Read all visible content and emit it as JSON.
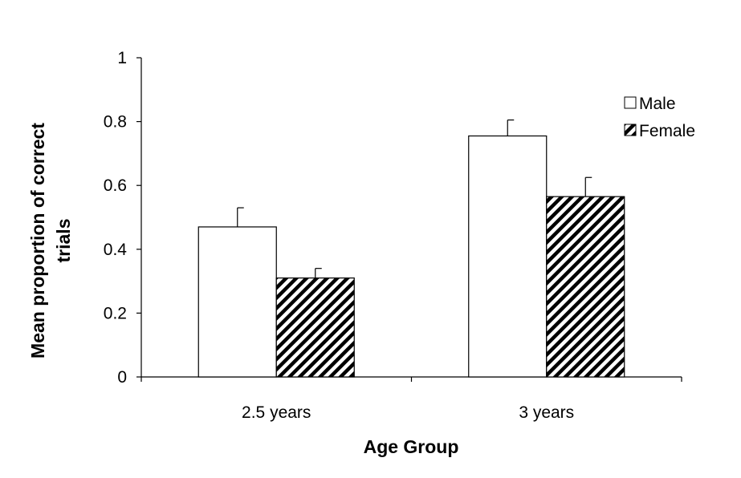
{
  "chart_data": {
    "type": "bar",
    "categories": [
      "2.5 years",
      "3 years"
    ],
    "series": [
      {
        "name": "Male",
        "values": [
          0.47,
          0.755
        ],
        "errors": [
          0.06,
          0.05
        ],
        "fill": "white"
      },
      {
        "name": "Female",
        "values": [
          0.31,
          0.565
        ],
        "errors": [
          0.03,
          0.06
        ],
        "fill": "hatched"
      }
    ],
    "title": "",
    "xlabel": "Age Group",
    "ylabel_lines": [
      "Mean proportion of correct",
      "trials"
    ],
    "ylim": [
      0,
      1
    ],
    "yticks": [
      "0",
      "0.2",
      "0.4",
      "0.6",
      "0.8",
      "1"
    ],
    "grid": false,
    "legend_position": "top-right",
    "error_bars": "upper",
    "colors": {
      "axis": "#000000",
      "bar_edge": "#000000",
      "male_fill": "#ffffff",
      "female_hatch": "#000000"
    }
  }
}
